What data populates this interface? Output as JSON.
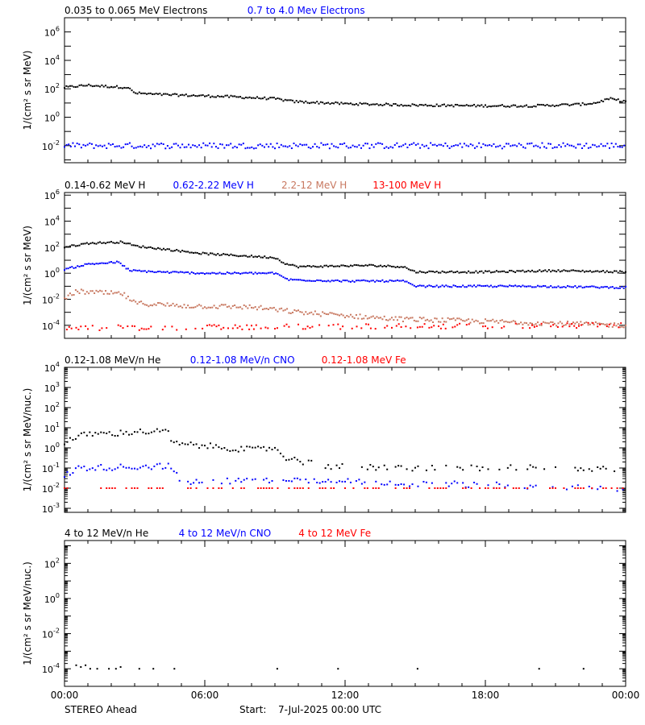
{
  "footer": {
    "spacecraft": "STEREO Ahead",
    "start_label": "Start:",
    "start_value": "7-Jul-2025 00:00 UTC"
  },
  "x_axis": {
    "ticks": [
      {
        "hour": 0,
        "label": "00:00"
      },
      {
        "hour": 6,
        "label": "06:00"
      },
      {
        "hour": 12,
        "label": "12:00"
      },
      {
        "hour": 18,
        "label": "18:00"
      },
      {
        "hour": 24,
        "label": "00:00"
      }
    ],
    "range_hours": [
      0,
      24
    ]
  },
  "colors": {
    "black": "#000000",
    "blue": "#0000ff",
    "salmon": "#c87860",
    "red": "#ff0000"
  },
  "chart_data": [
    {
      "type": "scatter",
      "ylabel": "1/(cm² s sr MeV)",
      "yscale": "log",
      "ylim_exp": [
        -3.2,
        7
      ],
      "ytick_labels": [
        {
          "exp": -2,
          "label": "10",
          "sup": "-2"
        },
        {
          "exp": 0,
          "label": "10",
          "sup": "0"
        },
        {
          "exp": 2,
          "label": "10",
          "sup": "2"
        },
        {
          "exp": 4,
          "label": "10",
          "sup": "4"
        },
        {
          "exp": 6,
          "label": "10",
          "sup": "6"
        }
      ],
      "legend": [
        {
          "name": "0.035 to 0.065 MeV Electrons",
          "color": "#000000"
        },
        {
          "name": "0.7 to 4.0 Mev Electrons",
          "color": "#0000ff"
        }
      ],
      "series": [
        {
          "name": "0.035 to 0.065 MeV Electrons",
          "color": "#000000",
          "profile": [
            [
              0,
              2.1
            ],
            [
              1,
              2.25
            ],
            [
              2,
              2.15
            ],
            [
              2.7,
              2.1
            ],
            [
              3,
              1.7
            ],
            [
              4,
              1.6
            ],
            [
              5,
              1.55
            ],
            [
              7,
              1.45
            ],
            [
              9,
              1.3
            ],
            [
              9.8,
              1.1
            ],
            [
              12,
              0.95
            ],
            [
              15,
              0.85
            ],
            [
              18,
              0.8
            ],
            [
              20,
              0.8
            ],
            [
              22,
              0.9
            ],
            [
              22.7,
              1.0
            ],
            [
              23.3,
              1.3
            ],
            [
              24,
              1.1
            ]
          ],
          "step_hours": 0.08,
          "spread_exp": 0.08
        },
        {
          "name": "0.7 to 4.0 Mev Electrons",
          "color": "#0000ff",
          "profile": [
            [
              0,
              -2.0
            ],
            [
              12,
              -2.0
            ],
            [
              24,
              -2.0
            ]
          ],
          "step_hours": 0.09,
          "spread_exp": 0.2
        }
      ]
    },
    {
      "type": "scatter",
      "ylabel": "1/(cm² s sr MeV)",
      "yscale": "log",
      "ylim_exp": [
        -5,
        6.2
      ],
      "ytick_labels": [
        {
          "exp": -4,
          "label": "10",
          "sup": "-4"
        },
        {
          "exp": -2,
          "label": "10",
          "sup": "-2"
        },
        {
          "exp": 0,
          "label": "10",
          "sup": "0"
        },
        {
          "exp": 2,
          "label": "10",
          "sup": "2"
        },
        {
          "exp": 4,
          "label": "10",
          "sup": "4"
        },
        {
          "exp": 6,
          "label": "10",
          "sup": "6"
        }
      ],
      "legend": [
        {
          "name": "0.14-0.62 MeV H",
          "color": "#000000"
        },
        {
          "name": "0.62-2.22 MeV H",
          "color": "#0000ff"
        },
        {
          "name": "2.2-12 MeV H",
          "color": "#c87860"
        },
        {
          "name": "13-100 MeV H",
          "color": "#ff0000"
        }
      ],
      "series": [
        {
          "name": "0.14-0.62 MeV H",
          "color": "#000000",
          "profile": [
            [
              0,
              2.0
            ],
            [
              1,
              2.3
            ],
            [
              2.5,
              2.4
            ],
            [
              3,
              2.1
            ],
            [
              4,
              1.9
            ],
            [
              6,
              1.5
            ],
            [
              8,
              1.3
            ],
            [
              9,
              1.2
            ],
            [
              9.5,
              0.7
            ],
            [
              10,
              0.5
            ],
            [
              13,
              0.6
            ],
            [
              14.5,
              0.5
            ],
            [
              15,
              0.1
            ],
            [
              18,
              0.1
            ],
            [
              21,
              0.2
            ],
            [
              24,
              0.1
            ]
          ],
          "step_hours": 0.08,
          "spread_exp": 0.07
        },
        {
          "name": "0.62-2.22 MeV H",
          "color": "#0000ff",
          "profile": [
            [
              0,
              0.3
            ],
            [
              1,
              0.7
            ],
            [
              2.3,
              0.85
            ],
            [
              2.8,
              0.2
            ],
            [
              4,
              0.1
            ],
            [
              6,
              0.0
            ],
            [
              9,
              0.0
            ],
            [
              9.6,
              -0.5
            ],
            [
              12,
              -0.6
            ],
            [
              14.5,
              -0.6
            ],
            [
              15,
              -1.0
            ],
            [
              20,
              -1.0
            ],
            [
              24,
              -1.1
            ]
          ],
          "step_hours": 0.08,
          "spread_exp": 0.07
        },
        {
          "name": "2.2-12 MeV H",
          "color": "#c87860",
          "profile": [
            [
              0,
              -2.0
            ],
            [
              0.5,
              -1.4
            ],
            [
              2.5,
              -1.6
            ],
            [
              3,
              -2.3
            ],
            [
              5,
              -2.5
            ],
            [
              8,
              -2.6
            ],
            [
              10,
              -3.0
            ],
            [
              14,
              -3.5
            ],
            [
              18,
              -3.7
            ],
            [
              24,
              -4.0
            ]
          ],
          "step_hours": 0.08,
          "spread_exp": 0.18
        },
        {
          "name": "13-100 MeV H",
          "color": "#ff0000",
          "profile": [
            [
              0,
              -4.2
            ],
            [
              12,
              -4.1
            ],
            [
              24,
              -4.0
            ]
          ],
          "step_hours": 0.1,
          "spread_exp": 0.2,
          "sparse": 0.55
        }
      ]
    },
    {
      "type": "scatter",
      "ylabel": "1/(cm² s sr MeV/nuc.)",
      "yscale": "log",
      "ylim_exp": [
        -3.2,
        4
      ],
      "ytick_labels": [
        {
          "exp": -3,
          "label": "10",
          "sup": "-3"
        },
        {
          "exp": -2,
          "label": "10",
          "sup": "-2"
        },
        {
          "exp": -1,
          "label": "10",
          "sup": "-1"
        },
        {
          "exp": 0,
          "label": "10",
          "sup": "0"
        },
        {
          "exp": 1,
          "label": "10",
          "sup": "1"
        },
        {
          "exp": 2,
          "label": "10",
          "sup": "2"
        },
        {
          "exp": 3,
          "label": "10",
          "sup": "3"
        },
        {
          "exp": 4,
          "label": "10",
          "sup": "4"
        }
      ],
      "legend": [
        {
          "name": "0.12-1.08 MeV/n He",
          "color": "#000000"
        },
        {
          "name": "0.12-1.08 MeV/n CNO",
          "color": "#0000ff"
        },
        {
          "name": "0.12-1.08 MeV Fe",
          "color": "#ff0000"
        }
      ],
      "series": [
        {
          "name": "0.12-1.08 MeV/n He",
          "color": "#000000",
          "profile": [
            [
              0,
              0.3
            ],
            [
              1,
              0.7
            ],
            [
              2,
              0.7
            ],
            [
              3,
              0.8
            ],
            [
              4,
              0.8
            ],
            [
              4.5,
              0.8
            ],
            [
              4.6,
              0.2
            ],
            [
              6,
              0.1
            ],
            [
              8,
              -0.1
            ],
            [
              9,
              0.0
            ],
            [
              9.5,
              -0.5
            ],
            [
              11,
              -0.9
            ],
            [
              14,
              -1.0
            ],
            [
              20,
              -1.0
            ],
            [
              24,
              -1.1
            ]
          ],
          "step_hours": 0.12,
          "spread_exp": 0.15,
          "sparse_after": [
            10,
            0.5
          ]
        },
        {
          "name": "0.12-1.08 MeV/n CNO",
          "color": "#0000ff",
          "profile": [
            [
              0,
              -1.4
            ],
            [
              0.6,
              -1.0
            ],
            [
              4.5,
              -0.9
            ],
            [
              5,
              -1.7
            ],
            [
              9,
              -1.6
            ],
            [
              24,
              -2.0
            ]
          ],
          "step_hours": 0.12,
          "spread_exp": 0.15,
          "sparse_after": [
            5,
            0.6
          ]
        },
        {
          "name": "0.12-1.08 MeV Fe",
          "color": "#ff0000",
          "profile": [
            [
              0,
              -2.0
            ],
            [
              24,
              -2.0
            ]
          ],
          "step_hours": 0.12,
          "spread_exp": 0.0,
          "sparse": 0.4
        }
      ]
    },
    {
      "type": "scatter",
      "ylabel": "1/(cm² s sr MeV/nuc.)",
      "yscale": "log",
      "ylim_exp": [
        -5,
        3.3
      ],
      "ytick_labels": [
        {
          "exp": -4,
          "label": "10",
          "sup": "-4"
        },
        {
          "exp": -2,
          "label": "10",
          "sup": "-2"
        },
        {
          "exp": 0,
          "label": "10",
          "sup": "0"
        },
        {
          "exp": 2,
          "label": "10",
          "sup": "2"
        }
      ],
      "legend": [
        {
          "name": "4 to 12 MeV/n He",
          "color": "#000000"
        },
        {
          "name": "4 to 12 MeV/n CNO",
          "color": "#0000ff"
        },
        {
          "name": "4 to 12 MeV Fe",
          "color": "#ff0000"
        }
      ],
      "series": [
        {
          "name": "4 to 12 MeV/n He",
          "color": "#000000",
          "points": [
            [
              0.5,
              -3.8
            ],
            [
              0.7,
              -3.9
            ],
            [
              0.9,
              -3.8
            ],
            [
              1.1,
              -4.0
            ],
            [
              1.4,
              -4.0
            ],
            [
              1.9,
              -4.0
            ],
            [
              2.2,
              -4.0
            ],
            [
              2.4,
              -3.9
            ],
            [
              3.2,
              -4.0
            ],
            [
              3.8,
              -4.0
            ],
            [
              4.7,
              -4.0
            ],
            [
              9.1,
              -4.0
            ],
            [
              11.7,
              -4.0
            ],
            [
              15.1,
              -4.0
            ],
            [
              20.3,
              -4.0
            ],
            [
              22.2,
              -4.0
            ]
          ]
        }
      ]
    }
  ]
}
